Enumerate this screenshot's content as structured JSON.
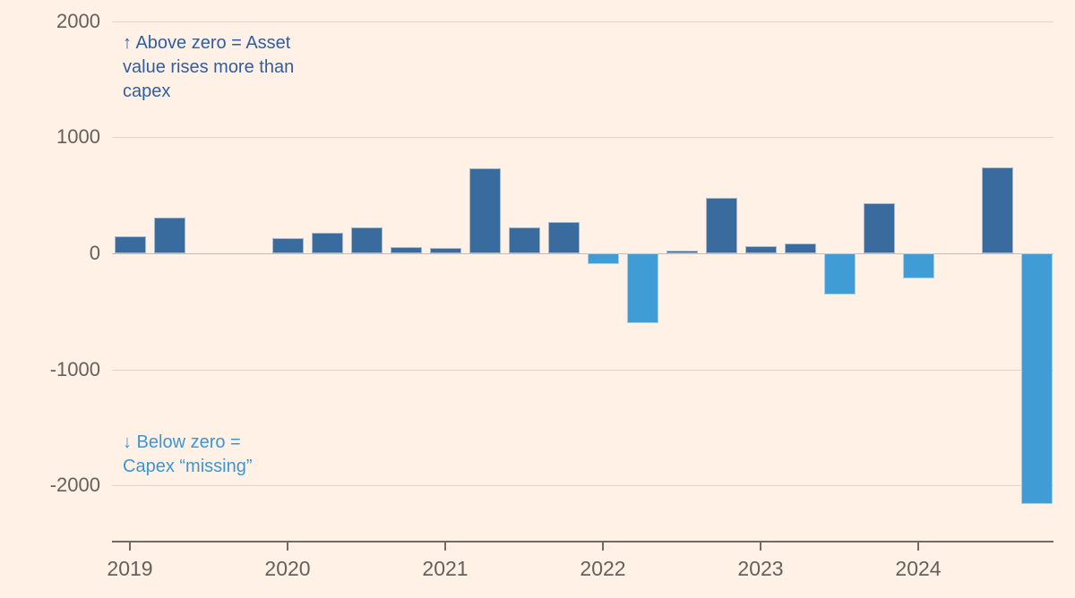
{
  "chart_data": {
    "type": "bar",
    "categories": [
      "2019 Q1",
      "2019 Q2",
      "2019 Q3",
      "2019 Q4",
      "2020 Q1",
      "2020 Q2",
      "2020 Q3",
      "2020 Q4",
      "2021 Q1",
      "2021 Q2",
      "2021 Q3",
      "2021 Q4",
      "2022 Q1",
      "2022 Q2",
      "2022 Q3",
      "2022 Q4",
      "2023 Q1",
      "2023 Q2",
      "2023 Q3",
      "2023 Q4",
      "2024 Q1",
      "2024 Q2",
      "2024 Q3",
      "2024 Q4"
    ],
    "values": [
      150,
      310,
      0,
      0,
      130,
      180,
      220,
      55,
      45,
      730,
      225,
      270,
      -95,
      -600,
      20,
      480,
      60,
      85,
      -355,
      430,
      -215,
      0,
      740,
      -2160
    ],
    "xtick_labels": [
      "2019",
      "2020",
      "2021",
      "2022",
      "2023",
      "2024"
    ],
    "yticks": [
      2000,
      1000,
      0,
      -1000,
      -2000
    ],
    "ytick_labels": [
      "2000",
      "1000",
      "0",
      "-1000",
      "-2000"
    ],
    "ylim": [
      -2480,
      2000
    ],
    "grid": true,
    "legend": "none",
    "colors": {
      "positive_bar": "#3a6b9e",
      "negative_bar": "#3f9cd4",
      "background": "#fff1e5",
      "gridline": "#e2d5c7",
      "zero_line": "#c9bdb1",
      "axis_line": "#716b64",
      "tick_text": "#66605c",
      "annotation_above": "#2f5f9e",
      "annotation_below": "#3c96d2"
    },
    "annotations": [
      {
        "id": "above-zero",
        "text": "↑ Above zero = Asset\nvalue rises more than\ncapex"
      },
      {
        "id": "below-zero",
        "text": "↓ Below zero =\nCapex “missing”"
      }
    ]
  }
}
